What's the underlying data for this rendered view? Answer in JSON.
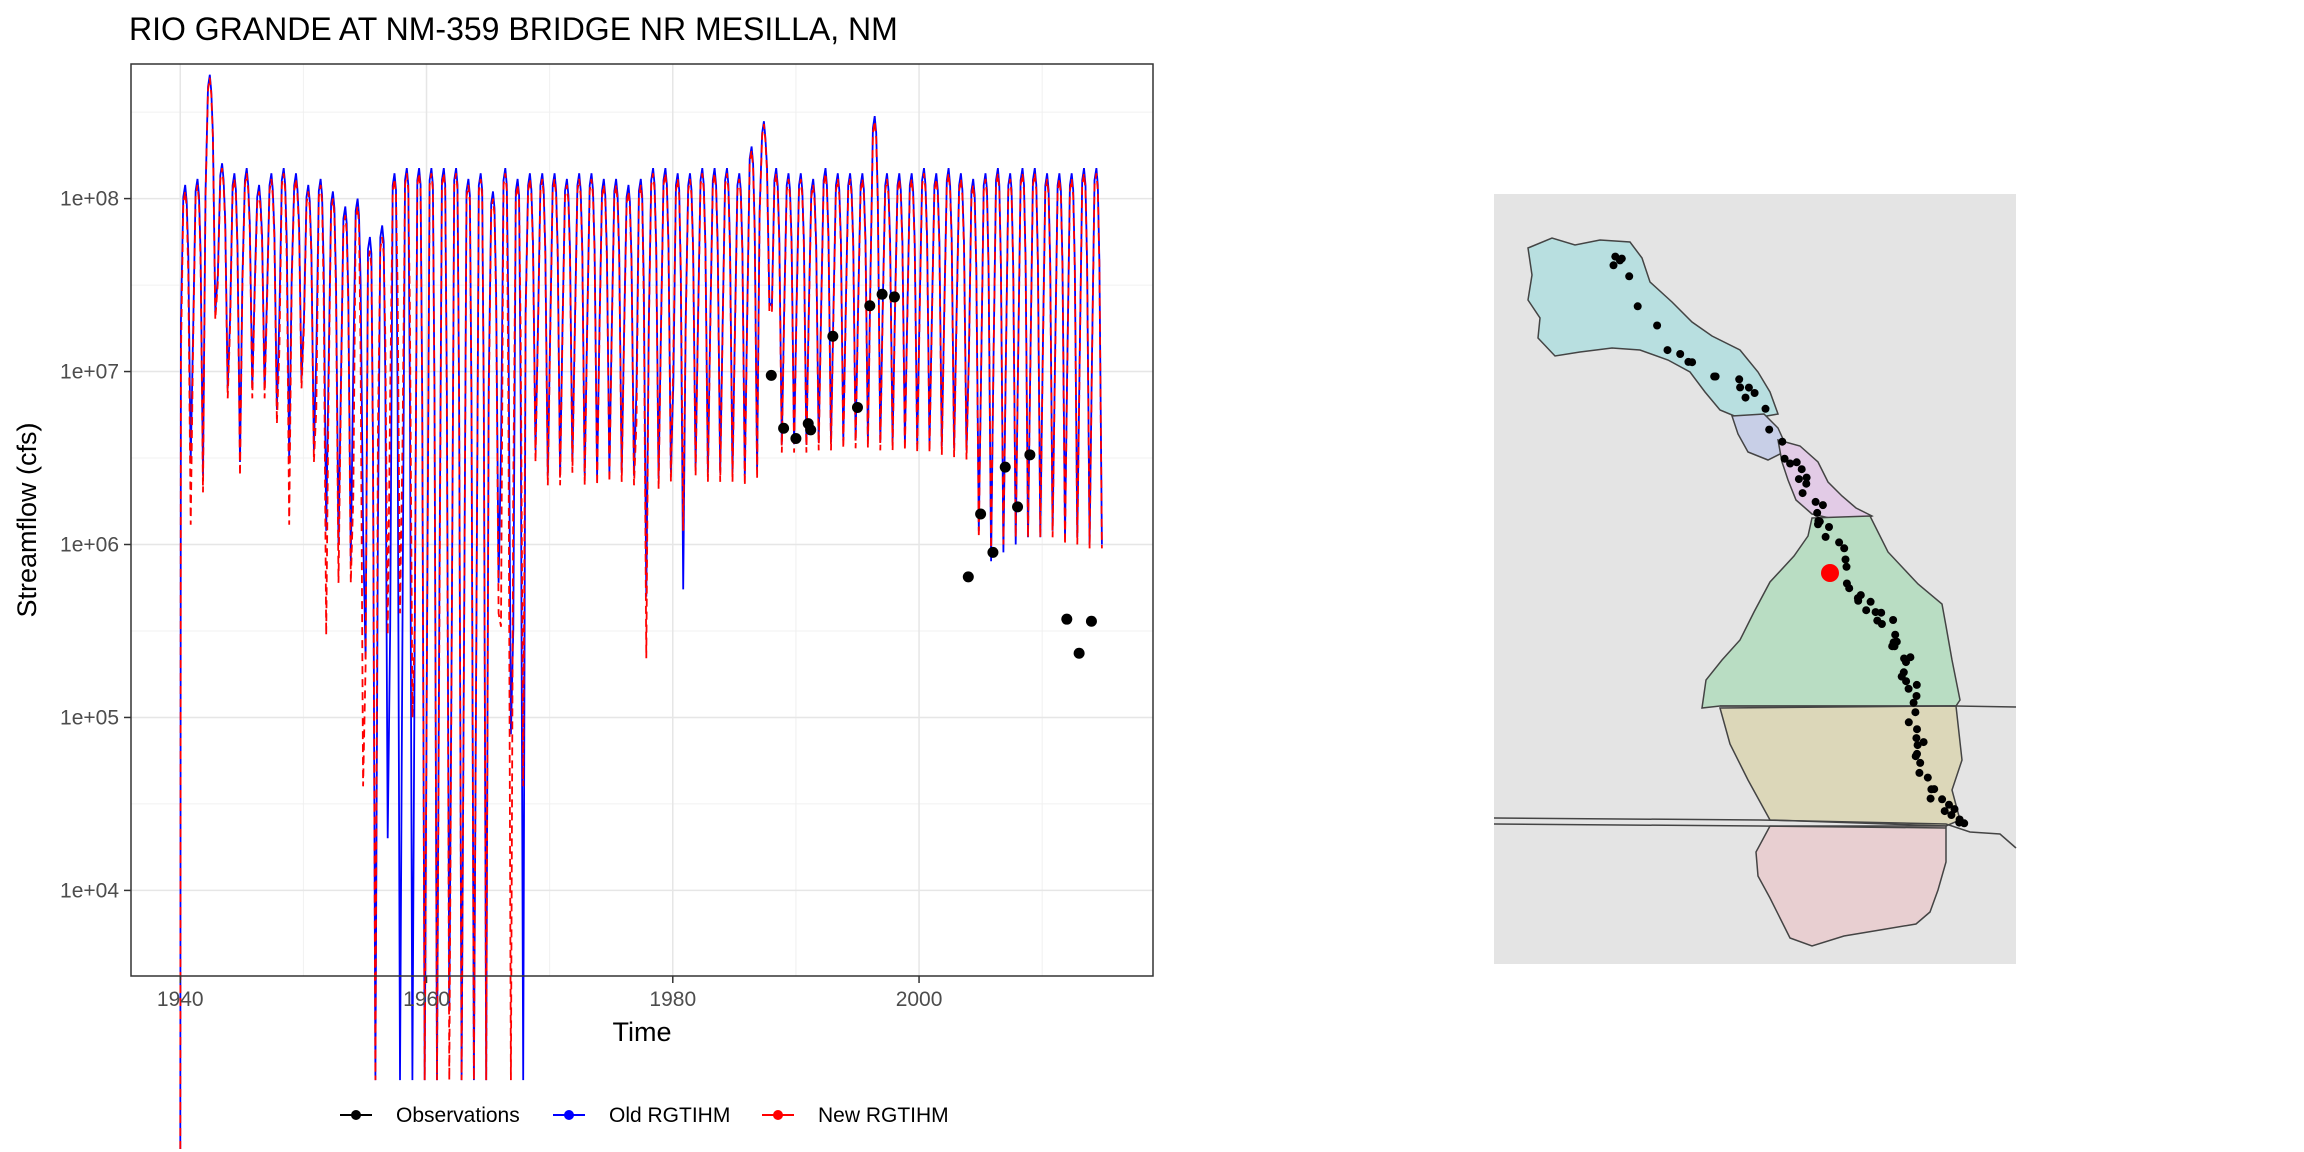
{
  "chart_data": [
    {
      "type": "line",
      "title": "RIO GRANDE AT NM-359 BRIDGE NR MESILLA, NM",
      "xlabel": "Time",
      "ylabel": "Streamflow (cfs)",
      "x_scale": "linear",
      "y_scale": "log10",
      "xlim": [
        1936,
        2019
      ],
      "ylim": [
        3200,
        600000000
      ],
      "x_ticks": [
        1940,
        1960,
        1980,
        2000
      ],
      "x_tick_labels": [
        "1940",
        "1960",
        "1980",
        "2000"
      ],
      "y_ticks": [
        10000,
        100000,
        1000000,
        10000000,
        100000000
      ],
      "y_tick_labels": [
        "1e+04",
        "1e+05",
        "1e+06",
        "1e+07",
        "1e+08"
      ],
      "grid": true,
      "legend_position": "bottom",
      "series": [
        {
          "name": "Observations",
          "style": "points",
          "color": "#000000",
          "points": [
            [
              1988,
              9500000
            ],
            [
              1989,
              4700000
            ],
            [
              1990,
              4100000
            ],
            [
              1991,
              5000000
            ],
            [
              1991.2,
              4600000
            ],
            [
              1993,
              16000000
            ],
            [
              1995,
              6200000
            ],
            [
              1996,
              24000000
            ],
            [
              1997,
              28000000
            ],
            [
              1998,
              27000000
            ],
            [
              2004,
              650000
            ],
            [
              2005,
              1500000
            ],
            [
              2006,
              900000
            ],
            [
              2007,
              2800000
            ],
            [
              2008,
              1650000
            ],
            [
              2009,
              3300000
            ],
            [
              2012,
              370000
            ],
            [
              2013,
              235000
            ],
            [
              2014,
              360000
            ]
          ]
        },
        {
          "name": "Old RGTIHM",
          "style": "solid",
          "color": "#0000ff",
          "annual": {
            "years": [
              1940,
              1941,
              1942,
              1943,
              1944,
              1945,
              1946,
              1947,
              1948,
              1949,
              1950,
              1951,
              1952,
              1953,
              1954,
              1955,
              1956,
              1957,
              1958,
              1959,
              1960,
              1961,
              1962,
              1963,
              1964,
              1965,
              1966,
              1967,
              1968,
              1969,
              1970,
              1971,
              1972,
              1973,
              1974,
              1975,
              1976,
              1977,
              1978,
              1979,
              1980,
              1981,
              1982,
              1983,
              1984,
              1985,
              1986,
              1987,
              1988,
              1989,
              1990,
              1991,
              1992,
              1993,
              1994,
              1995,
              1996,
              1997,
              1998,
              1999,
              2000,
              2001,
              2002,
              2003,
              2004,
              2005,
              2006,
              2007,
              2008,
              2009,
              2010,
              2011,
              2012,
              2013,
              2014
            ],
            "peaks": [
              120000000,
              130000000,
              520000000,
              160000000,
              140000000,
              150000000,
              120000000,
              140000000,
              150000000,
              140000000,
              120000000,
              130000000,
              110000000,
              90000000,
              100000000,
              60000000,
              70000000,
              140000000,
              150000000,
              150000000,
              150000000,
              150000000,
              150000000,
              130000000,
              140000000,
              110000000,
              150000000,
              130000000,
              140000000,
              140000000,
              140000000,
              130000000,
              140000000,
              140000000,
              130000000,
              130000000,
              120000000,
              130000000,
              150000000,
              150000000,
              140000000,
              140000000,
              150000000,
              150000000,
              150000000,
              140000000,
              200000000,
              280000000,
              150000000,
              140000000,
              140000000,
              130000000,
              150000000,
              140000000,
              140000000,
              140000000,
              300000000,
              140000000,
              140000000,
              140000000,
              150000000,
              140000000,
              150000000,
              140000000,
              130000000,
              140000000,
              150000000,
              140000000,
              150000000,
              150000000,
              140000000,
              140000000,
              140000000,
              150000000,
              150000000
            ],
            "troughs": [
              3000000,
              2500000,
              22000000,
              8000000,
              3000000,
              8000000,
              8000000,
              6000000,
              3000000,
              9000000,
              3500000,
              1200000,
              1000000,
              800000,
              1200000,
              800,
              20000,
              800,
              800,
              800,
              800,
              2000,
              800,
              800,
              800,
              600000,
              80000,
              800,
              3500000,
              2500000,
              2500000,
              3000000,
              2500000,
              2500000,
              2600000,
              2600000,
              2500000,
              500000,
              2400000,
              2600000,
              550000,
              2800000,
              2600000,
              2600000,
              2600000,
              2500000,
              2700000,
              25000000,
              3800000,
              3800000,
              3800000,
              3900000,
              3900000,
              4000000,
              4000000,
              4000000,
              3900000,
              3900000,
              3900000,
              3800000,
              3800000,
              3700000,
              3600000,
              3500000,
              1200000,
              800000,
              900000,
              1000000,
              1100000,
              1100000,
              1200000,
              1100000,
              1100000,
              1000000,
              1000000
            ]
          }
        },
        {
          "name": "New RGTIHM",
          "style": "dashed",
          "color": "#ff0000",
          "annual": {
            "years": [
              1940,
              1941,
              1942,
              1943,
              1944,
              1945,
              1946,
              1947,
              1948,
              1949,
              1950,
              1951,
              1952,
              1953,
              1954,
              1955,
              1956,
              1957,
              1958,
              1959,
              1960,
              1961,
              1962,
              1963,
              1964,
              1965,
              1966,
              1967,
              1968,
              1969,
              1970,
              1971,
              1972,
              1973,
              1974,
              1975,
              1976,
              1977,
              1978,
              1979,
              1980,
              1981,
              1982,
              1983,
              1984,
              1985,
              1986,
              1987,
              1988,
              1989,
              1990,
              1991,
              1992,
              1993,
              1994,
              1995,
              1996,
              1997,
              1998,
              1999,
              2000,
              2001,
              2002,
              2003,
              2004,
              2005,
              2006,
              2007,
              2008,
              2009,
              2010,
              2011,
              2012,
              2013,
              2014
            ],
            "peaks": [
              110000000,
              120000000,
              500000000,
              150000000,
              130000000,
              140000000,
              110000000,
              130000000,
              140000000,
              130000000,
              110000000,
              120000000,
              100000000,
              80000000,
              90000000,
              50000000,
              60000000,
              130000000,
              140000000,
              140000000,
              140000000,
              140000000,
              140000000,
              120000000,
              130000000,
              100000000,
              140000000,
              120000000,
              130000000,
              130000000,
              130000000,
              120000000,
              130000000,
              130000000,
              120000000,
              120000000,
              110000000,
              120000000,
              140000000,
              140000000,
              130000000,
              130000000,
              140000000,
              140000000,
              140000000,
              130000000,
              190000000,
              270000000,
              140000000,
              130000000,
              130000000,
              120000000,
              140000000,
              130000000,
              130000000,
              130000000,
              280000000,
              130000000,
              130000000,
              130000000,
              140000000,
              130000000,
              140000000,
              130000000,
              120000000,
              130000000,
              140000000,
              130000000,
              140000000,
              140000000,
              130000000,
              130000000,
              130000000,
              140000000,
              140000000
            ],
            "troughs": [
              1300000,
              2000000,
              20000000,
              7000000,
              2500000,
              7000000,
              7000000,
              5000000,
              1300000,
              8000000,
              3000000,
              300000,
              600000,
              600000,
              40000,
              800,
              300000,
              400000,
              100000,
              800,
              800,
              800,
              800,
              800,
              800,
              400000,
              800,
              40000,
              3000000,
              2200000,
              2200000,
              2600000,
              2200000,
              2200000,
              2300000,
              2300000,
              2200000,
              220000,
              2100000,
              2300000,
              1200000,
              2500000,
              2300000,
              2300000,
              2300000,
              2200000,
              2400000,
              22000000,
              3400000,
              3400000,
              3400000,
              3500000,
              3500000,
              3600000,
              3600000,
              3600000,
              3500000,
              3500000,
              3500000,
              3400000,
              3400000,
              3300000,
              3200000,
              3100000,
              1100000,
              950000,
              1000000,
              1100000,
              1100000,
              1100000,
              1100000,
              1000000,
              1000000,
              950000,
              950000
            ]
          }
        }
      ]
    },
    {
      "type": "map",
      "title": "",
      "highlight_color": "#ff0000",
      "region_colors": [
        "#b8dfe0",
        "#c8cfe7",
        "#e2cbe6",
        "#b9ddc3",
        "#dcd7b9",
        "#e8cfd1"
      ],
      "background_color": "#e4e4e4",
      "marker_count": 90
    }
  ],
  "legend": {
    "items": [
      {
        "label": "Observations",
        "color": "#000000"
      },
      {
        "label": "Old RGTIHM",
        "color": "#0000ff"
      },
      {
        "label": "New RGTIHM",
        "color": "#ff0000"
      }
    ]
  }
}
